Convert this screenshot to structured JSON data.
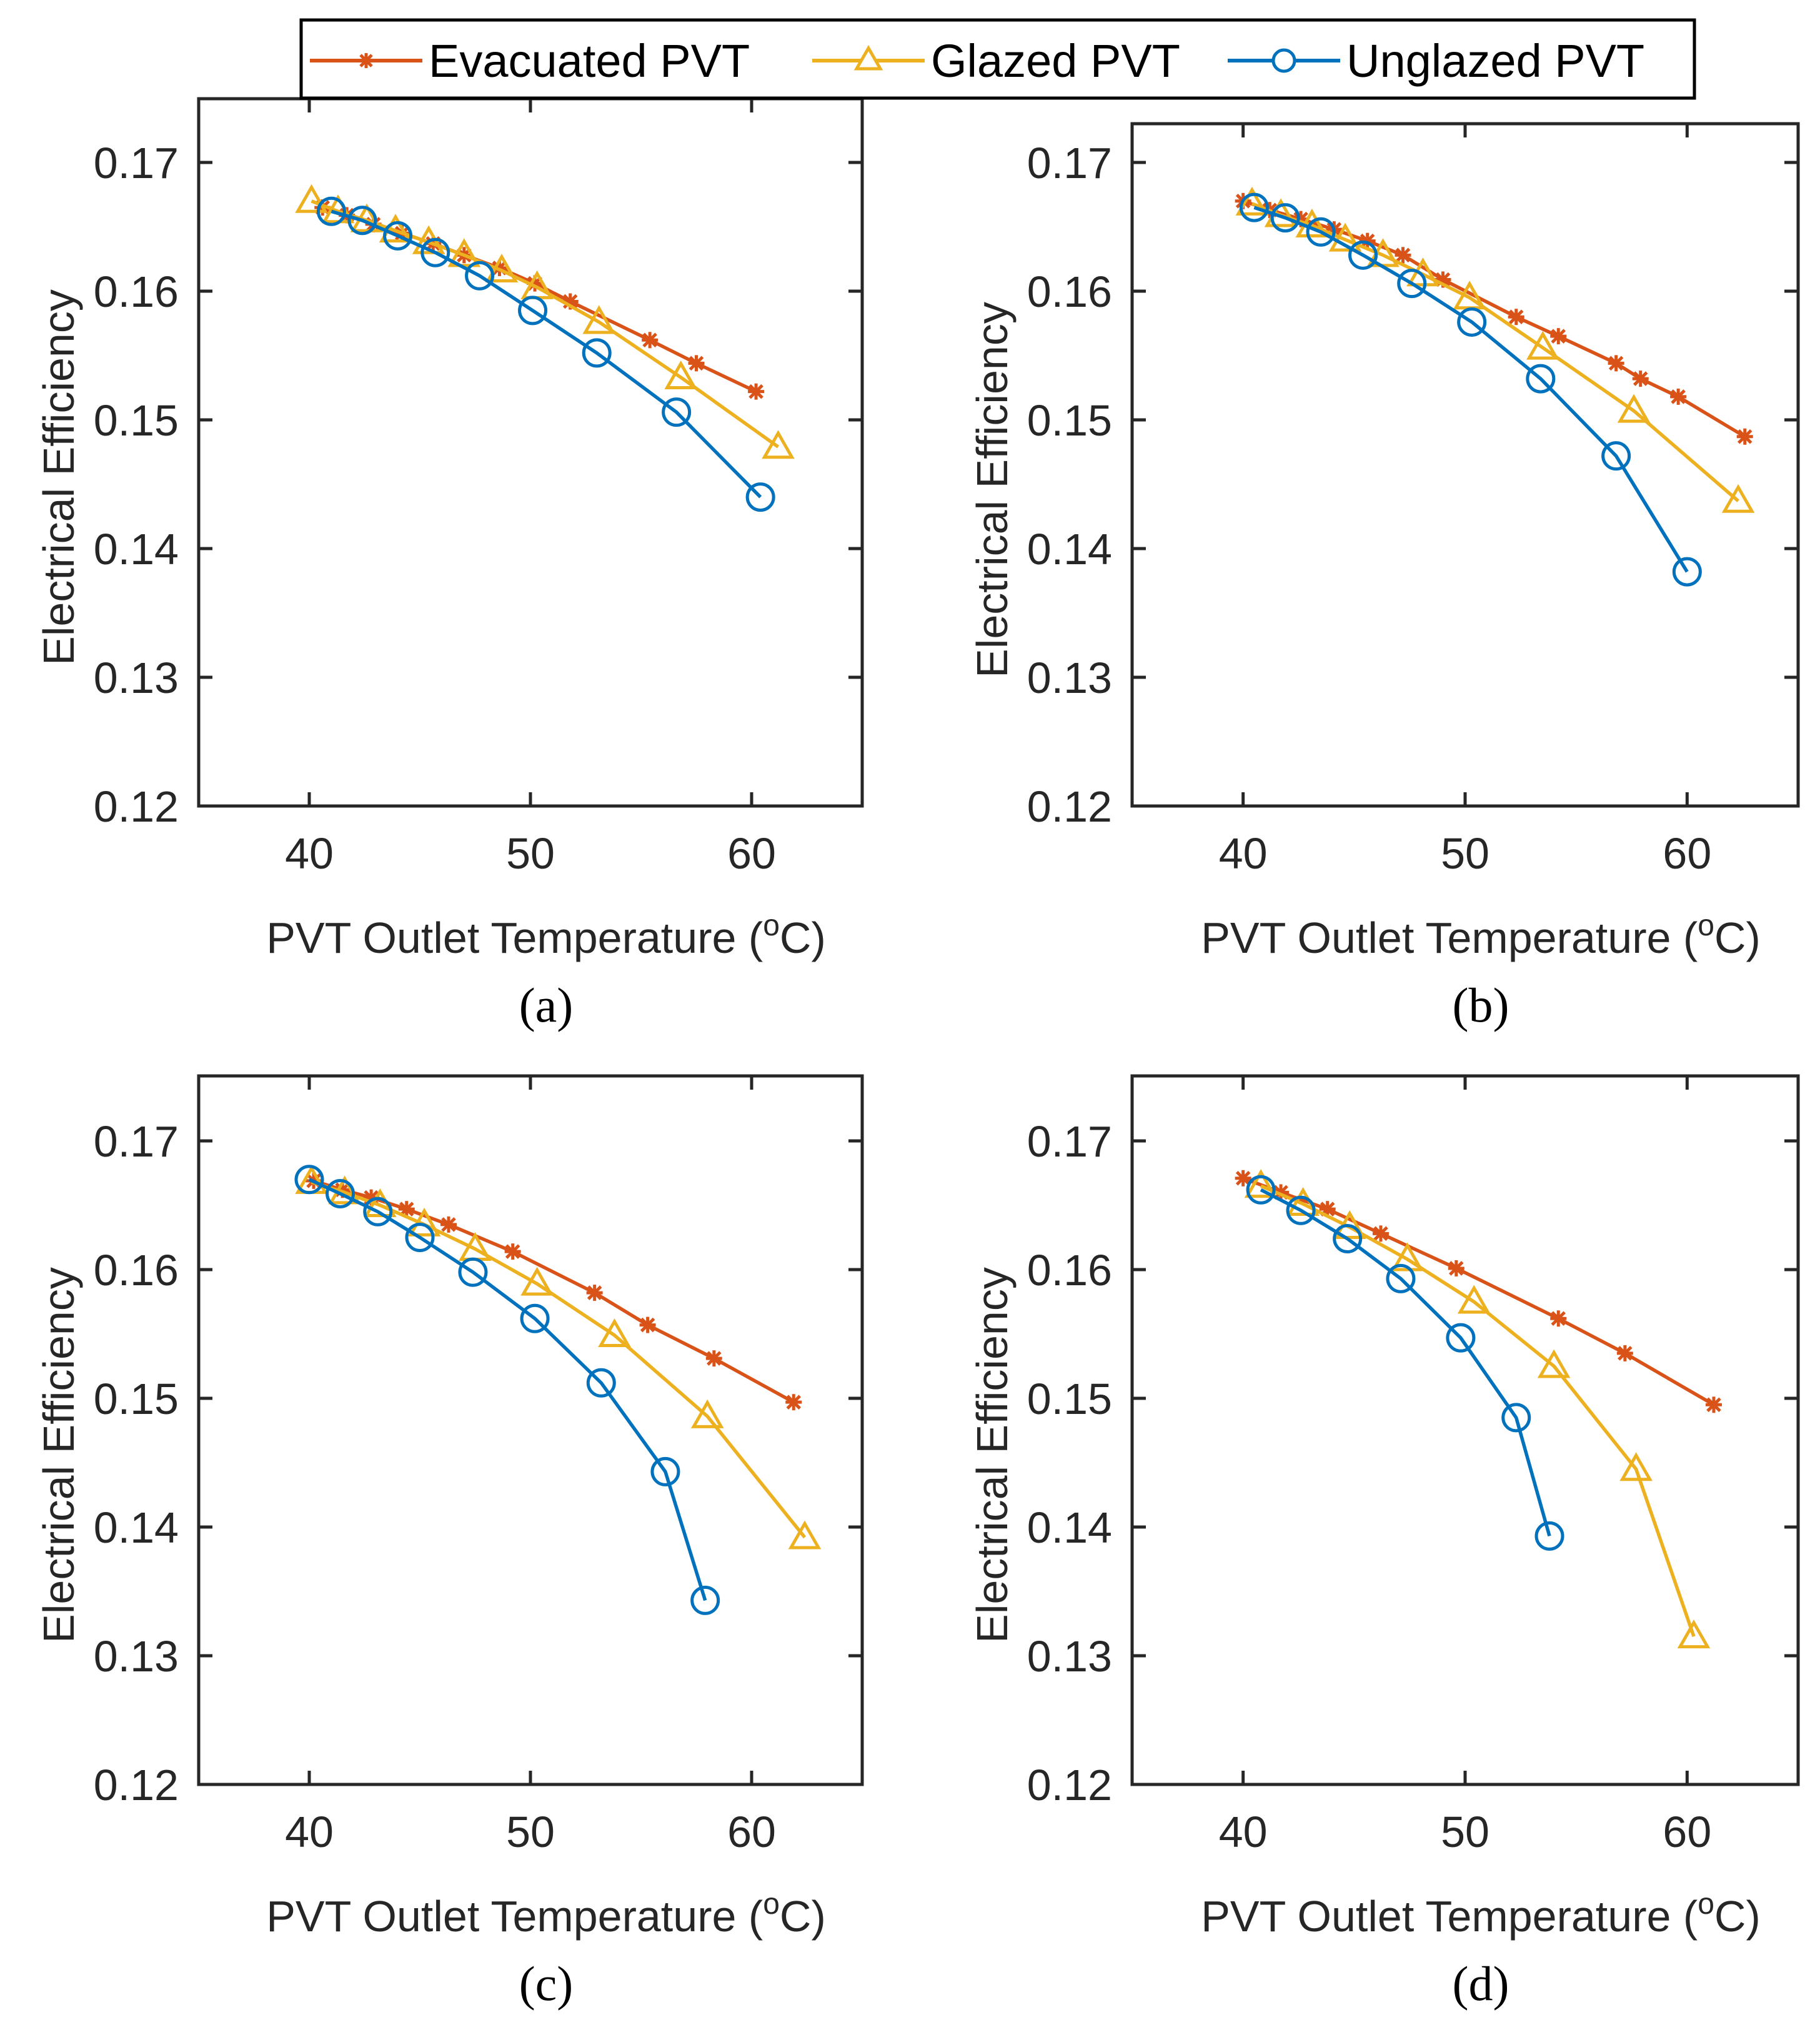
{
  "legend": {
    "items": [
      {
        "name": "Evacuated PVT",
        "color": "#D95319",
        "marker": "asterisk"
      },
      {
        "name": "Glazed PVT",
        "color": "#EDB120",
        "marker": "triangle"
      },
      {
        "name": "Unglazed PVT",
        "color": "#0072BD",
        "marker": "circle"
      }
    ]
  },
  "chart_data": [
    {
      "type": "line",
      "panel": "a",
      "caption": "(a)",
      "xlabel": "PVT Outlet Temperature",
      "xlabel_unit_prefix": "(",
      "xlabel_unit_sup": "o",
      "xlabel_unit_suffix": "C)",
      "ylabel": "Electrical Efficiency",
      "xlim": [
        35,
        65
      ],
      "ylim": [
        0.12,
        0.175
      ],
      "xticks": [
        "40",
        "50",
        "60"
      ],
      "xtick_values": [
        40,
        50,
        60
      ],
      "yticks": [
        "0.12",
        "0.13",
        "0.14",
        "0.15",
        "0.16",
        "0.17"
      ],
      "ytick_values": [
        0.12,
        0.13,
        0.14,
        0.15,
        0.16,
        0.17
      ],
      "series": [
        {
          "name": "Evacuated PVT",
          "x": [
            40.6,
            41.7,
            42.9,
            44.2,
            45.6,
            47.0,
            48.6,
            50.2,
            51.8,
            55.4,
            57.5,
            60.2
          ],
          "y": [
            0.1665,
            0.1659,
            0.1652,
            0.1645,
            0.1637,
            0.1628,
            0.1618,
            0.1606,
            0.1592,
            0.1562,
            0.1544,
            0.1522
          ]
        },
        {
          "name": "Glazed PVT",
          "x": [
            40.1,
            41.3,
            42.6,
            43.9,
            45.4,
            47.0,
            48.7,
            50.3,
            53.1,
            56.8,
            61.2
          ],
          "y": [
            0.167,
            0.1662,
            0.1655,
            0.1647,
            0.1638,
            0.1628,
            0.1616,
            0.1603,
            0.1576,
            0.1533,
            0.1479
          ]
        },
        {
          "name": "Unglazed PVT",
          "x": [
            41.0,
            42.4,
            44.0,
            45.7,
            47.7,
            50.1,
            53.0,
            56.6,
            60.4
          ],
          "y": [
            0.1662,
            0.1655,
            0.1643,
            0.163,
            0.1612,
            0.1585,
            0.1552,
            0.1506,
            0.144
          ]
        }
      ]
    },
    {
      "type": "line",
      "panel": "b",
      "caption": "(b)",
      "xlabel": "PVT Outlet Temperature",
      "xlabel_unit_prefix": "(",
      "xlabel_unit_sup": "o",
      "xlabel_unit_suffix": "C)",
      "ylabel": "Electrical Efficiency",
      "xlim": [
        35,
        65
      ],
      "ylim": [
        0.12,
        0.175
      ],
      "xticks": [
        "40",
        "50",
        "60"
      ],
      "xtick_values": [
        40,
        50,
        60
      ],
      "yticks": [
        "0.12",
        "0.13",
        "0.14",
        "0.15",
        "0.16",
        "0.17"
      ],
      "ytick_values": [
        0.12,
        0.13,
        0.14,
        0.15,
        0.16,
        0.17
      ],
      "series": [
        {
          "name": "Evacuated PVT",
          "x": [
            40.0,
            41.2,
            42.6,
            44.1,
            45.6,
            47.2,
            49.0,
            52.3,
            54.2,
            56.8,
            57.9,
            59.6,
            62.6
          ],
          "y": [
            0.167,
            0.1663,
            0.1656,
            0.1648,
            0.1639,
            0.1628,
            0.1609,
            0.158,
            0.1565,
            0.1544,
            0.1532,
            0.1518,
            0.1487
          ]
        },
        {
          "name": "Glazed PVT",
          "x": [
            40.4,
            41.7,
            43.1,
            44.6,
            46.3,
            48.1,
            50.2,
            53.5,
            57.6,
            62.3
          ],
          "y": [
            0.1668,
            0.1659,
            0.1651,
            0.164,
            0.1628,
            0.1613,
            0.1595,
            0.1556,
            0.1507,
            0.1437
          ]
        },
        {
          "name": "Unglazed PVT",
          "x": [
            40.5,
            41.9,
            43.5,
            45.4,
            47.6,
            50.3,
            53.4,
            56.8,
            60.0
          ],
          "y": [
            0.1665,
            0.1657,
            0.1646,
            0.1628,
            0.1606,
            0.1576,
            0.1532,
            0.1472,
            0.1382
          ]
        }
      ]
    },
    {
      "type": "line",
      "panel": "c",
      "caption": "(c)",
      "xlabel": "PVT Outlet Temperature",
      "xlabel_unit_prefix": "(",
      "xlabel_unit_sup": "o",
      "xlabel_unit_suffix": "C)",
      "ylabel": "Electrical Efficiency",
      "xlim": [
        35,
        65
      ],
      "ylim": [
        0.12,
        0.175
      ],
      "xticks": [
        "40",
        "50",
        "60"
      ],
      "xtick_values": [
        40,
        50,
        60
      ],
      "yticks": [
        "0.12",
        "0.13",
        "0.14",
        "0.15",
        "0.16",
        "0.17"
      ],
      "ytick_values": [
        0.12,
        0.13,
        0.14,
        0.15,
        0.16,
        0.17
      ],
      "series": [
        {
          "name": "Evacuated PVT",
          "x": [
            40.2,
            41.5,
            42.8,
            44.4,
            46.3,
            49.2,
            52.9,
            55.3,
            58.3,
            61.9
          ],
          "y": [
            0.1669,
            0.1662,
            0.1656,
            0.1647,
            0.1635,
            0.1614,
            0.1582,
            0.1557,
            0.1531,
            0.1497
          ]
        },
        {
          "name": "Glazed PVT",
          "x": [
            40.1,
            41.6,
            43.2,
            45.2,
            47.5,
            50.3,
            53.8,
            58.0,
            62.4
          ],
          "y": [
            0.1668,
            0.166,
            0.165,
            0.1635,
            0.1616,
            0.1589,
            0.1549,
            0.1486,
            0.1392
          ]
        },
        {
          "name": "Unglazed PVT",
          "x": [
            40.0,
            41.4,
            43.1,
            45.0,
            47.4,
            50.2,
            53.2,
            56.1,
            57.9
          ],
          "y": [
            0.167,
            0.1659,
            0.1645,
            0.1625,
            0.1598,
            0.1562,
            0.1512,
            0.1443,
            0.1343
          ]
        }
      ]
    },
    {
      "type": "line",
      "panel": "d",
      "caption": "(d)",
      "xlabel": "PVT Outlet Temperature",
      "xlabel_unit_prefix": "(",
      "xlabel_unit_sup": "o",
      "xlabel_unit_suffix": "C)",
      "ylabel": "Electrical Efficiency",
      "xlim": [
        35,
        65
      ],
      "ylim": [
        0.12,
        0.175
      ],
      "xticks": [
        "40",
        "50",
        "60"
      ],
      "xtick_values": [
        40,
        50,
        60
      ],
      "yticks": [
        "0.12",
        "0.13",
        "0.14",
        "0.15",
        "0.16",
        "0.17"
      ],
      "ytick_values": [
        0.12,
        0.13,
        0.14,
        0.15,
        0.16,
        0.17
      ],
      "series": [
        {
          "name": "Evacuated PVT",
          "x": [
            40.0,
            41.7,
            43.8,
            46.2,
            49.6,
            54.2,
            57.2,
            61.2
          ],
          "y": [
            0.1671,
            0.166,
            0.1647,
            0.1628,
            0.1601,
            0.1562,
            0.1535,
            0.1495
          ]
        },
        {
          "name": "Glazed PVT",
          "x": [
            40.8,
            42.7,
            44.8,
            47.4,
            50.4,
            54.0,
            57.7,
            60.3
          ],
          "y": [
            0.1665,
            0.1651,
            0.1633,
            0.1608,
            0.1575,
            0.1525,
            0.1445,
            0.1315
          ]
        },
        {
          "name": "Unglazed PVT",
          "x": [
            40.8,
            42.6,
            44.7,
            47.1,
            49.8,
            52.3,
            53.8
          ],
          "y": [
            0.1662,
            0.1646,
            0.1624,
            0.1593,
            0.1547,
            0.1485,
            0.1393
          ]
        }
      ]
    }
  ]
}
